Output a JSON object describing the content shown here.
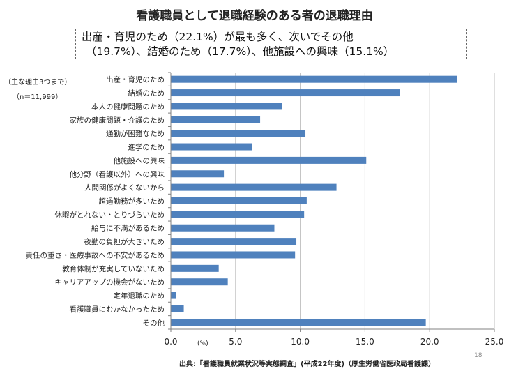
{
  "title": "看護職員として退職経験のある者の退職理由",
  "summary": {
    "line1": "出産・育児のため（22.1%）が最も多く、次いでその他",
    "line2": "（19.7%）、結婚のため（17.7%）、他施設への興味（15.1%）"
  },
  "notes": {
    "reasons": "（主な理由3つまで）",
    "n": "（n＝11,999）"
  },
  "source": "出典:「看護職員就業状況等実態調査」(平成22年度)（厚生労働省医政局看護課）",
  "page_number": "18",
  "colors": {
    "bar": "#4f81bd",
    "grid": "#bfbfbf",
    "axis": "#808080"
  },
  "chart_data": {
    "type": "bar",
    "orientation": "horizontal",
    "categories": [
      "出産・育児のため",
      "結婚のため",
      "本人の健康問題のため",
      "家族の健康問題・介護のため",
      "通勤が困難なため",
      "進学のため",
      "他施設への興味",
      "他分野（看護以外）への興味",
      "人間関係がよくないから",
      "超過勤務が多いため",
      "休暇がとれない・とりづらいため",
      "給与に不満があるため",
      "夜勤の負担が大きいため",
      "責任の重さ・医療事故への不安があるため",
      "教育体制が充実していないため",
      "キャリアアップの機会がないため",
      "定年退職のため",
      "看護職員にむかなかったため",
      "その他"
    ],
    "values": [
      22.1,
      17.7,
      8.6,
      6.9,
      10.4,
      6.3,
      15.1,
      4.1,
      12.8,
      10.5,
      10.3,
      8.0,
      9.7,
      9.6,
      3.7,
      4.4,
      0.4,
      1.0,
      19.7
    ],
    "xlim": [
      0,
      25
    ],
    "xticks": [
      "0.0",
      "5.0",
      "10.0",
      "15.0",
      "20.0",
      "25.0"
    ],
    "xunit": "(%)",
    "grid": true
  }
}
